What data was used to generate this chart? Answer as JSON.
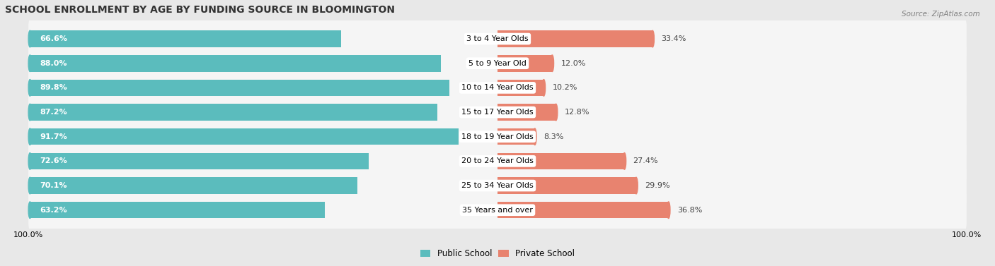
{
  "title": "SCHOOL ENROLLMENT BY AGE BY FUNDING SOURCE IN BLOOMINGTON",
  "source": "Source: ZipAtlas.com",
  "categories": [
    "3 to 4 Year Olds",
    "5 to 9 Year Old",
    "10 to 14 Year Olds",
    "15 to 17 Year Olds",
    "18 to 19 Year Olds",
    "20 to 24 Year Olds",
    "25 to 34 Year Olds",
    "35 Years and over"
  ],
  "public_values": [
    66.6,
    88.0,
    89.8,
    87.2,
    91.7,
    72.6,
    70.1,
    63.2
  ],
  "private_values": [
    33.4,
    12.0,
    10.2,
    12.8,
    8.3,
    27.4,
    29.9,
    36.8
  ],
  "public_color": "#5bbcbd",
  "private_color": "#e8836f",
  "private_light_color": "#f0a898",
  "bg_color": "#e8e8e8",
  "row_bg_color": "#f5f5f5",
  "label_bg_color": "#ffffff",
  "public_label": "Public School",
  "private_label": "Private School",
  "left_tick_label": "100.0%",
  "right_tick_label": "100.0%",
  "title_fontsize": 10,
  "bar_label_fontsize": 8,
  "category_fontsize": 8,
  "source_fontsize": 7.5
}
